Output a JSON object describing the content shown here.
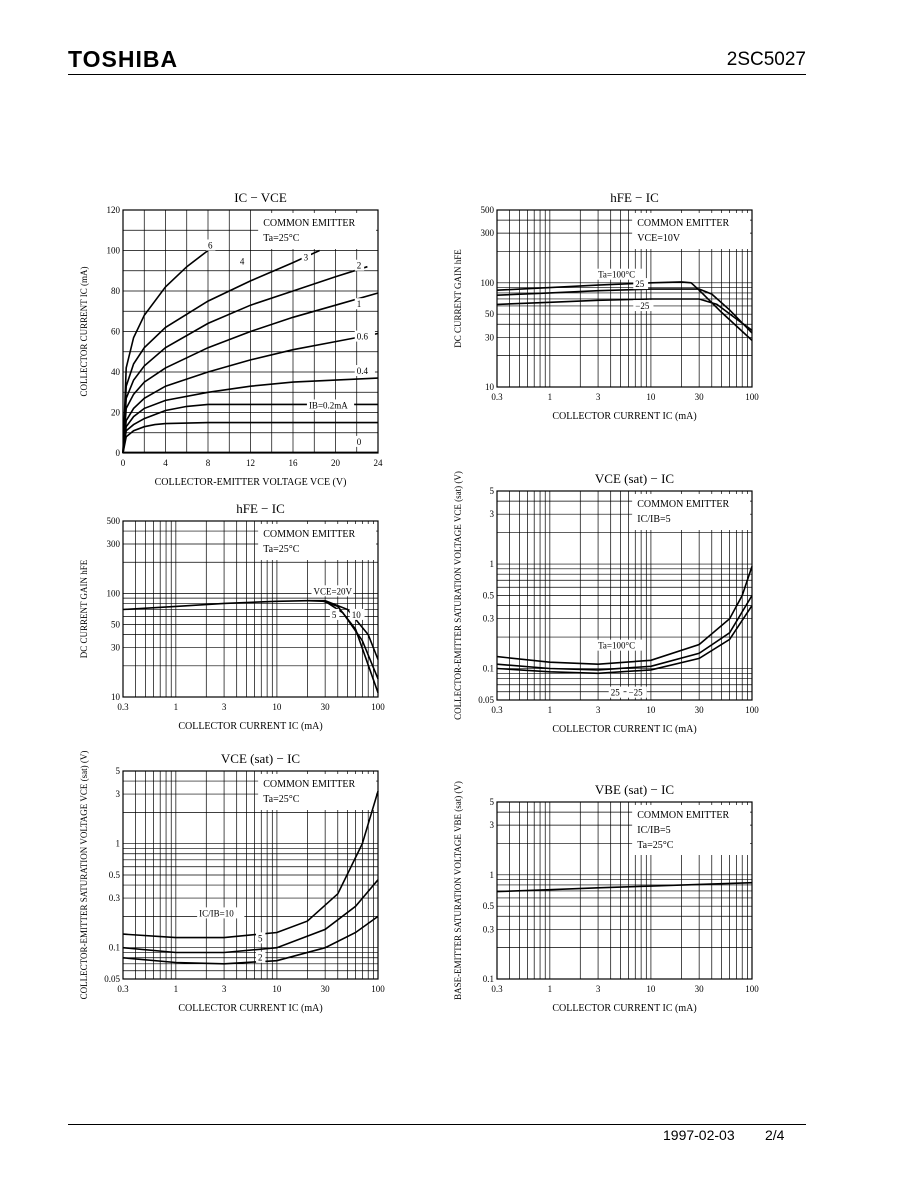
{
  "header": {
    "brand": "TOSHIBA",
    "part": "2SC5027"
  },
  "footer": {
    "date": "1997-02-03",
    "page": "2/4"
  },
  "chart_data": [
    {
      "id": "c1",
      "type": "line",
      "title": "IC − VCE",
      "xlabel": "COLLECTOR-EMITTER VOLTAGE  VCE  (V)",
      "ylabel": "COLLECTOR CURRENT  IC  (mA)",
      "xscale": "linear",
      "yscale": "linear",
      "xlim": [
        0,
        24
      ],
      "ylim": [
        0,
        120
      ],
      "xticks": [
        0,
        4,
        8,
        12,
        16,
        20,
        24
      ],
      "yticks": [
        0,
        20,
        40,
        60,
        80,
        100,
        120
      ],
      "grid": true,
      "notes": [
        "COMMON EMITTER",
        "Ta=25°C"
      ],
      "series": [
        {
          "name": "6",
          "points": [
            [
              0,
              0
            ],
            [
              0.3,
              42
            ],
            [
              1,
              57
            ],
            [
              2,
              68
            ],
            [
              4,
              82
            ],
            [
              6,
              92
            ],
            [
              8,
              100
            ]
          ],
          "label_at": [
            8,
            101
          ]
        },
        {
          "name": "4",
          "points": [
            [
              0,
              0
            ],
            [
              0.3,
              33
            ],
            [
              1,
              44
            ],
            [
              2,
              52
            ],
            [
              4,
              62
            ],
            [
              8,
              75
            ],
            [
              12,
              85
            ],
            [
              16,
              94
            ],
            [
              18.5,
              100
            ]
          ],
          "label_at": [
            11,
            93
          ]
        },
        {
          "name": "3",
          "points": [
            [
              0,
              0
            ],
            [
              0.3,
              27
            ],
            [
              1,
              36
            ],
            [
              2,
              43
            ],
            [
              4,
              52
            ],
            [
              8,
              64
            ],
            [
              12,
              73
            ],
            [
              16,
              80
            ],
            [
              20,
              87
            ],
            [
              23,
              92
            ]
          ],
          "label_at": [
            17,
            95
          ]
        },
        {
          "name": "2",
          "points": [
            [
              0,
              0
            ],
            [
              0.3,
              22
            ],
            [
              1,
              29
            ],
            [
              2,
              35
            ],
            [
              4,
              42
            ],
            [
              8,
              52
            ],
            [
              12,
              60
            ],
            [
              16,
              67
            ],
            [
              20,
              73
            ],
            [
              24,
              79
            ]
          ],
          "label_at": [
            22,
            91
          ]
        },
        {
          "name": "1",
          "points": [
            [
              0,
              0
            ],
            [
              0.3,
              16
            ],
            [
              1,
              22
            ],
            [
              2,
              27
            ],
            [
              4,
              33
            ],
            [
              8,
              40
            ],
            [
              12,
              46
            ],
            [
              16,
              51
            ],
            [
              20,
              55
            ],
            [
              24,
              59
            ]
          ],
          "label_at": [
            22,
            72
          ]
        },
        {
          "name": "0.6",
          "points": [
            [
              0,
              0
            ],
            [
              0.3,
              13
            ],
            [
              1,
              18
            ],
            [
              2,
              22
            ],
            [
              4,
              26
            ],
            [
              8,
              30
            ],
            [
              12,
              33
            ],
            [
              16,
              35
            ],
            [
              20,
              36
            ],
            [
              24,
              37
            ]
          ],
          "label_at": [
            22,
            56
          ]
        },
        {
          "name": "0.4",
          "points": [
            [
              0,
              0
            ],
            [
              0.3,
              11
            ],
            [
              1,
              14
            ],
            [
              2,
              17
            ],
            [
              4,
              21
            ],
            [
              6,
              23
            ],
            [
              8,
              24
            ],
            [
              12,
              24
            ],
            [
              24,
              24
            ]
          ],
          "label_at": [
            22,
            39
          ]
        },
        {
          "name": "IB=0.2mA",
          "points": [
            [
              0,
              0
            ],
            [
              0.3,
              8
            ],
            [
              1,
              11
            ],
            [
              2,
              13
            ],
            [
              3,
              14
            ],
            [
              4,
              14.5
            ],
            [
              8,
              15
            ],
            [
              24,
              15
            ]
          ],
          "label_at": [
            17.5,
            22
          ]
        },
        {
          "name": "0",
          "points": [
            [
              0,
              0.3
            ],
            [
              24,
              0.3
            ]
          ],
          "label_at": [
            22,
            4
          ]
        }
      ]
    },
    {
      "id": "c2",
      "type": "line",
      "title": "hFE − IC",
      "xlabel": "COLLECTOR CURRENT  IC  (mA)",
      "ylabel": "DC CURRENT GAIN  hFE",
      "xscale": "log",
      "yscale": "log",
      "xlim": [
        0.3,
        100
      ],
      "ylim": [
        10,
        500
      ],
      "xticks": [
        0.3,
        1,
        3,
        10,
        30,
        100
      ],
      "yticks": [
        10,
        30,
        50,
        100,
        300,
        500
      ],
      "grid": true,
      "notes": [
        "COMMON EMITTER",
        "VCE=10V"
      ],
      "series": [
        {
          "name": "Ta=100°C",
          "points": [
            [
              0.3,
              85
            ],
            [
              1,
              90
            ],
            [
              3,
              95
            ],
            [
              10,
              100
            ],
            [
              20,
              102
            ],
            [
              25,
              100
            ],
            [
              30,
              85
            ],
            [
              50,
              52
            ],
            [
              100,
              28
            ]
          ],
          "label_at": [
            3,
            112
          ]
        },
        {
          "name": "25",
          "points": [
            [
              0.3,
              76
            ],
            [
              1,
              80
            ],
            [
              3,
              84
            ],
            [
              10,
              87
            ],
            [
              30,
              87
            ],
            [
              40,
              78
            ],
            [
              60,
              55
            ],
            [
              100,
              33
            ]
          ],
          "label_at": [
            7,
            91
          ]
        },
        {
          "name": "−25",
          "points": [
            [
              0.3,
              62
            ],
            [
              1,
              65
            ],
            [
              3,
              68
            ],
            [
              10,
              70
            ],
            [
              30,
              70
            ],
            [
              45,
              62
            ],
            [
              70,
              45
            ],
            [
              100,
              35
            ]
          ],
          "label_at": [
            7,
            56
          ]
        }
      ]
    },
    {
      "id": "c3",
      "type": "line",
      "title": "hFE − IC",
      "xlabel": "COLLECTOR CURRENT  IC  (mA)",
      "ylabel": "DC CURRENT GAIN  hFE",
      "xscale": "log",
      "yscale": "log",
      "xlim": [
        0.3,
        100
      ],
      "ylim": [
        10,
        500
      ],
      "xticks": [
        0.3,
        1,
        3,
        10,
        30,
        100
      ],
      "yticks": [
        10,
        30,
        50,
        100,
        300,
        500
      ],
      "grid": true,
      "notes": [
        "COMMON EMITTER",
        "Ta=25°C"
      ],
      "series": [
        {
          "name": "VCE=20V",
          "points": [
            [
              0.3,
              70
            ],
            [
              1,
              75
            ],
            [
              3,
              80
            ],
            [
              10,
              84
            ],
            [
              20,
              85
            ],
            [
              30,
              85
            ],
            [
              50,
              70
            ],
            [
              80,
              40
            ],
            [
              100,
              23
            ]
          ],
          "label_at": [
            23,
            98
          ]
        },
        {
          "name": "5",
          "points": [
            [
              20,
              85
            ],
            [
              30,
              84
            ],
            [
              45,
              65
            ],
            [
              70,
              35
            ],
            [
              100,
              15
            ]
          ],
          "label_at": [
            35,
            58
          ]
        },
        {
          "name": "10",
          "points": [
            [
              28,
              85
            ],
            [
              40,
              75
            ],
            [
              60,
              45
            ],
            [
              100,
              11
            ]
          ],
          "label_at": [
            55,
            58
          ]
        }
      ]
    },
    {
      "id": "c4",
      "type": "line",
      "title": "VCE (sat) − IC",
      "xlabel": "COLLECTOR CURRENT  IC  (mA)",
      "ylabel": "COLLECTOR-EMITTER SATURATION VOLTAGE  VCE (sat)  (V)",
      "xscale": "log",
      "yscale": "log",
      "xlim": [
        0.3,
        100
      ],
      "ylim": [
        0.05,
        5
      ],
      "xticks": [
        0.3,
        1,
        3,
        10,
        30,
        100
      ],
      "yticks": [
        0.05,
        0.1,
        0.3,
        0.5,
        1,
        3,
        5
      ],
      "grid": true,
      "notes": [
        "COMMON EMITTER",
        "IC/IB=5"
      ],
      "series": [
        {
          "name": "Ta=100°C",
          "points": [
            [
              0.3,
              0.13
            ],
            [
              1,
              0.115
            ],
            [
              3,
              0.11
            ],
            [
              10,
              0.12
            ],
            [
              30,
              0.17
            ],
            [
              60,
              0.3
            ],
            [
              80,
              0.5
            ],
            [
              100,
              0.95
            ]
          ],
          "label_at": [
            3,
            0.155
          ]
        },
        {
          "name": "25",
          "points": [
            [
              0.3,
              0.11
            ],
            [
              1,
              0.1
            ],
            [
              3,
              0.097
            ],
            [
              10,
              0.105
            ],
            [
              30,
              0.14
            ],
            [
              60,
              0.22
            ],
            [
              100,
              0.5
            ]
          ],
          "label_at": [
            4,
            0.055
          ]
        },
        {
          "name": "−25",
          "points": [
            [
              0.3,
              0.1
            ],
            [
              1,
              0.093
            ],
            [
              3,
              0.09
            ],
            [
              10,
              0.097
            ],
            [
              30,
              0.125
            ],
            [
              60,
              0.19
            ],
            [
              100,
              0.4
            ]
          ],
          "label_at": [
            6,
            0.055
          ]
        }
      ]
    },
    {
      "id": "c5",
      "type": "line",
      "title": "VCE (sat) − IC",
      "xlabel": "COLLECTOR CURRENT  IC  (mA)",
      "ylabel": "COLLECTOR-EMITTER SATURATION VOLTAGE  VCE (sat)  (V)",
      "xscale": "log",
      "yscale": "log",
      "xlim": [
        0.3,
        100
      ],
      "ylim": [
        0.05,
        5
      ],
      "xticks": [
        0.3,
        1,
        3,
        10,
        30,
        100
      ],
      "yticks": [
        0.05,
        0.1,
        0.3,
        0.5,
        1,
        3,
        5
      ],
      "grid": true,
      "notes": [
        "COMMON EMITTER",
        "Ta=25°C"
      ],
      "series": [
        {
          "name": "IC/IB=10",
          "points": [
            [
              0.3,
              0.135
            ],
            [
              1,
              0.125
            ],
            [
              3,
              0.125
            ],
            [
              10,
              0.14
            ],
            [
              20,
              0.18
            ],
            [
              40,
              0.33
            ],
            [
              70,
              1
            ],
            [
              100,
              3.2
            ]
          ],
          "label_at": [
            1.7,
            0.2
          ]
        },
        {
          "name": "5",
          "points": [
            [
              0.3,
              0.1
            ],
            [
              1,
              0.09
            ],
            [
              3,
              0.09
            ],
            [
              10,
              0.1
            ],
            [
              30,
              0.15
            ],
            [
              60,
              0.25
            ],
            [
              100,
              0.45
            ]
          ],
          "label_at": [
            6.5,
            0.115
          ]
        },
        {
          "name": "2",
          "points": [
            [
              0.3,
              0.08
            ],
            [
              1,
              0.072
            ],
            [
              3,
              0.07
            ],
            [
              10,
              0.075
            ],
            [
              30,
              0.1
            ],
            [
              60,
              0.14
            ],
            [
              100,
              0.2
            ]
          ],
          "label_at": [
            6.5,
            0.075
          ]
        }
      ]
    },
    {
      "id": "c6",
      "type": "line",
      "title": "VBE (sat) − IC",
      "xlabel": "COLLECTOR CURRENT  IC  (mA)",
      "ylabel": "BASE-EMITTER SATURATION VOLTAGE  VBE (sat)  (V)",
      "xscale": "log",
      "yscale": "log",
      "xlim": [
        0.3,
        100
      ],
      "ylim": [
        0.1,
        5
      ],
      "xticks": [
        0.3,
        1,
        3,
        10,
        30,
        100
      ],
      "yticks": [
        0.1,
        0.3,
        0.5,
        1,
        3,
        5
      ],
      "grid": true,
      "notes": [
        "COMMON EMITTER",
        "IC/IB=5",
        "Ta=25°C"
      ],
      "series": [
        {
          "name": "",
          "points": [
            [
              0.3,
              0.69
            ],
            [
              1,
              0.72
            ],
            [
              3,
              0.75
            ],
            [
              10,
              0.78
            ],
            [
              30,
              0.81
            ],
            [
              100,
              0.84
            ]
          ]
        }
      ]
    }
  ]
}
